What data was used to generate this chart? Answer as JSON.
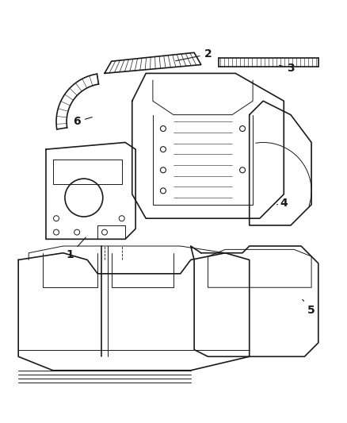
{
  "background_color": "#ffffff",
  "line_color": "#1a1a1a",
  "label_color": "#1a1a1a",
  "figure_width": 4.38,
  "figure_height": 5.33,
  "dpi": 100,
  "label_fontsize": 10
}
